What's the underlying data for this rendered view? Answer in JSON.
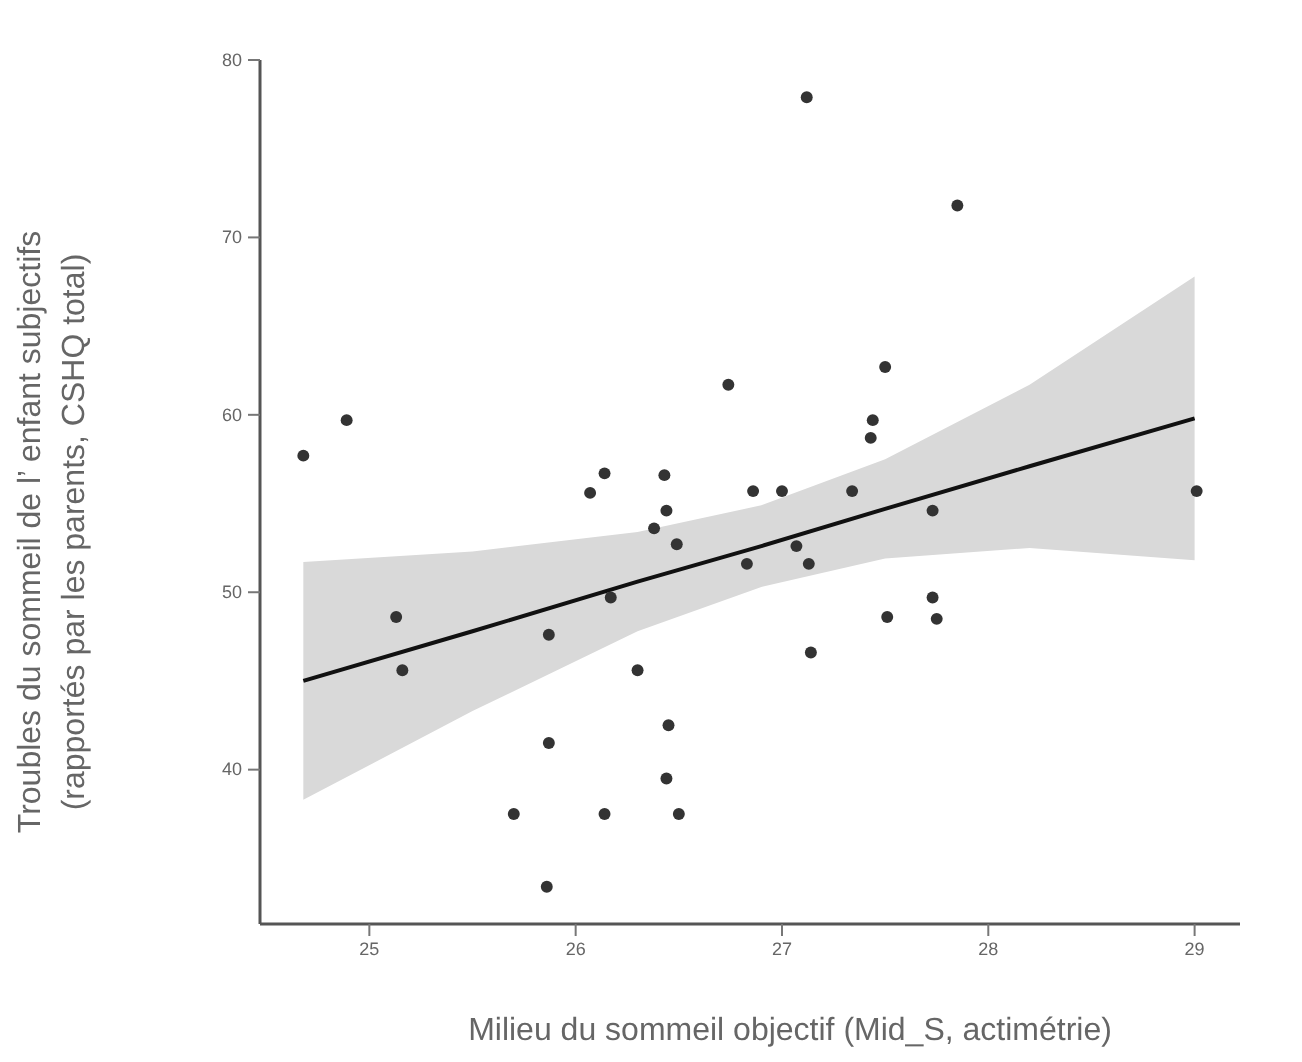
{
  "chart_data": {
    "type": "scatter",
    "xlabel": "Milieu du sommeil objectif (Mid_S, actimétrie)",
    "ylabel": "Troubles du sommeil de l’ enfant subjectifs\n(rapportés par les parents, CSHQ total)",
    "xlim": [
      24.47,
      29.22
    ],
    "xticks": [
      25,
      26,
      27,
      28,
      29
    ],
    "ylim": [
      31.3,
      80
    ],
    "yticks": [
      40,
      50,
      60,
      70,
      80
    ],
    "grid": false,
    "series": [
      {
        "marker": "circle",
        "color": "#333333",
        "x": [
          27.12,
          27.85,
          27.5,
          26.74,
          24.89,
          24.68,
          27.44,
          27.43,
          26.14,
          26.07,
          26.43,
          26.44,
          26.38,
          26.49,
          26.86,
          27.0,
          27.34,
          27.73,
          29.01,
          26.83,
          27.07,
          27.13,
          26.17,
          25.13,
          25.16,
          25.87,
          27.51,
          27.73,
          27.75,
          27.14,
          26.3,
          26.45,
          25.87,
          26.44,
          25.7,
          26.14,
          26.5,
          25.86
        ],
        "values": [
          77.9,
          71.8,
          62.7,
          61.7,
          59.7,
          57.7,
          59.7,
          58.7,
          56.7,
          55.6,
          56.6,
          54.6,
          53.6,
          52.7,
          55.7,
          55.7,
          55.7,
          54.6,
          55.7,
          51.6,
          52.6,
          51.6,
          49.7,
          48.6,
          45.6,
          47.6,
          48.6,
          49.7,
          48.5,
          46.6,
          45.6,
          42.5,
          41.5,
          39.5,
          37.5,
          37.5,
          37.5,
          33.4
        ]
      },
      {
        "type": "line",
        "color": "#111111",
        "x": [
          24.68,
          25.5,
          26.3,
          26.9,
          27.5,
          28.2,
          29.0
        ],
        "values": [
          45.0,
          47.8,
          50.6,
          52.6,
          54.7,
          57.1,
          59.8
        ],
        "lower": [
          38.3,
          43.3,
          47.8,
          50.3,
          51.9,
          52.5,
          51.8
        ],
        "upper": [
          51.7,
          52.3,
          53.4,
          54.9,
          57.5,
          61.7,
          67.8
        ]
      }
    ]
  }
}
